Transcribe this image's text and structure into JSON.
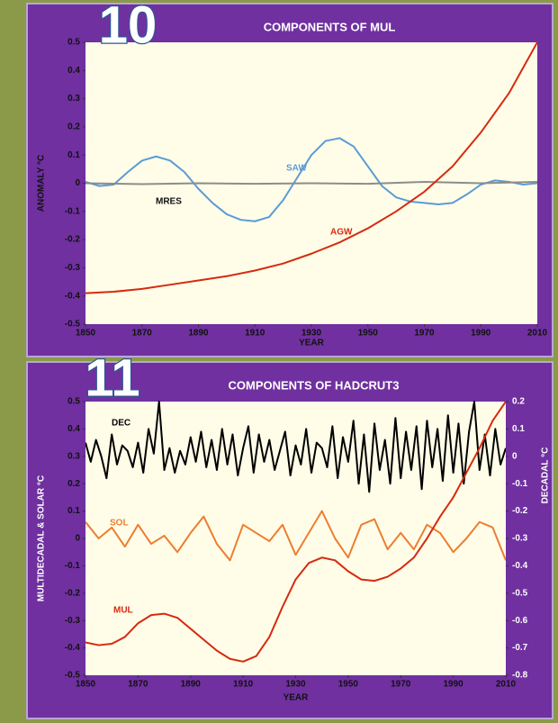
{
  "chart_data": [
    {
      "type": "line",
      "panel_label": "10",
      "title": "COMPONENTS OF MUL",
      "x_label": "YEAR",
      "y_label": "ANOMALY °C",
      "xlim": [
        1850,
        2010
      ],
      "xticks": [
        1850,
        1870,
        1890,
        1910,
        1930,
        1950,
        1970,
        1990,
        2010
      ],
      "ylim": [
        -0.5,
        0.5
      ],
      "yticks": [
        0.5,
        0.4,
        0.3,
        0.2,
        0.1,
        0,
        -0.1,
        -0.2,
        -0.3,
        -0.4,
        -0.5
      ],
      "annotations": [
        "SAW",
        "MRES",
        "AGW"
      ],
      "series": [
        {
          "name": "SAW",
          "color": "#5b9bd5",
          "x": [
            1850,
            1855,
            1860,
            1865,
            1870,
            1875,
            1880,
            1885,
            1890,
            1895,
            1900,
            1905,
            1910,
            1915,
            1920,
            1925,
            1930,
            1935,
            1940,
            1945,
            1950,
            1955,
            1960,
            1965,
            1970,
            1975,
            1980,
            1985,
            1990,
            1995,
            2000,
            2005,
            2010
          ],
          "values": [
            0.005,
            -0.01,
            -0.005,
            0.04,
            0.08,
            0.095,
            0.08,
            0.04,
            -0.02,
            -0.07,
            -0.11,
            -0.13,
            -0.135,
            -0.12,
            -0.06,
            0.02,
            0.1,
            0.15,
            0.16,
            0.13,
            0.06,
            -0.01,
            -0.05,
            -0.065,
            -0.07,
            -0.075,
            -0.07,
            -0.04,
            -0.005,
            0.01,
            0.005,
            -0.005,
            0
          ]
        },
        {
          "name": "MRES",
          "color": "#8c8c8c",
          "x": [
            1850,
            1870,
            1890,
            1910,
            1930,
            1950,
            1970,
            1990,
            2010
          ],
          "values": [
            0,
            -0.003,
            0,
            -0.002,
            0,
            -0.002,
            0.005,
            0,
            0.005
          ]
        },
        {
          "name": "AGW",
          "color": "#d62a10",
          "x": [
            1850,
            1860,
            1870,
            1880,
            1890,
            1900,
            1910,
            1920,
            1930,
            1940,
            1950,
            1960,
            1970,
            1980,
            1990,
            2000,
            2010
          ],
          "values": [
            -0.39,
            -0.385,
            -0.375,
            -0.36,
            -0.345,
            -0.33,
            -0.31,
            -0.285,
            -0.25,
            -0.21,
            -0.16,
            -0.1,
            -0.03,
            0.06,
            0.18,
            0.32,
            0.5
          ]
        }
      ]
    },
    {
      "type": "line",
      "panel_label": "11",
      "title": "COMPONENTS OF HADCRUT3",
      "x_label": "YEAR",
      "y_label": "MULTIDECADAL & SOLAR °C",
      "y2_label": "DECADAL °C",
      "xlim": [
        1850,
        2010
      ],
      "xticks": [
        1850,
        1870,
        1890,
        1910,
        1930,
        1950,
        1970,
        1990,
        2010
      ],
      "ylim": [
        -0.5,
        0.5
      ],
      "yticks": [
        0.5,
        0.4,
        0.3,
        0.2,
        0.1,
        0,
        -0.1,
        -0.2,
        -0.3,
        -0.4,
        -0.5
      ],
      "y2lim": [
        -0.8,
        0.2
      ],
      "y2ticks": [
        0.2,
        0.1,
        0,
        -0.1,
        -0.2,
        -0.3,
        -0.4,
        -0.5,
        -0.6,
        -0.7,
        -0.8
      ],
      "annotations": [
        "DEC",
        "SOL",
        "MUL"
      ],
      "series": [
        {
          "name": "DEC",
          "color": "#000000",
          "axis": "y2",
          "x": [
            1850,
            1852,
            1854,
            1856,
            1858,
            1860,
            1862,
            1864,
            1866,
            1868,
            1870,
            1872,
            1874,
            1876,
            1878,
            1880,
            1882,
            1884,
            1886,
            1888,
            1890,
            1892,
            1894,
            1896,
            1898,
            1900,
            1902,
            1904,
            1906,
            1908,
            1910,
            1912,
            1914,
            1916,
            1918,
            1920,
            1922,
            1924,
            1926,
            1928,
            1930,
            1932,
            1934,
            1936,
            1938,
            1940,
            1942,
            1944,
            1946,
            1948,
            1950,
            1952,
            1954,
            1956,
            1958,
            1960,
            1962,
            1964,
            1966,
            1968,
            1970,
            1972,
            1974,
            1976,
            1978,
            1980,
            1982,
            1984,
            1986,
            1988,
            1990,
            1992,
            1994,
            1996,
            1998,
            2000,
            2002,
            2004,
            2006,
            2008,
            2010
          ],
          "values": [
            0.05,
            -0.02,
            0.06,
            0,
            -0.08,
            0.08,
            -0.03,
            0.04,
            0.02,
            -0.04,
            0.05,
            -0.06,
            0.1,
            0.01,
            0.2,
            -0.05,
            0.03,
            -0.06,
            0.02,
            -0.03,
            0.07,
            -0.02,
            0.09,
            -0.04,
            0.06,
            -0.05,
            0.1,
            -0.03,
            0.08,
            -0.07,
            0.03,
            0.11,
            -0.06,
            0.08,
            -0.02,
            0.06,
            -0.05,
            0.02,
            0.09,
            -0.07,
            0.04,
            -0.03,
            0.1,
            -0.06,
            0.05,
            0.03,
            -0.04,
            0.11,
            -0.08,
            0.07,
            -0.02,
            0.13,
            -0.1,
            0.08,
            -0.13,
            0.12,
            -0.05,
            0.06,
            -0.1,
            0.14,
            -0.08,
            0.09,
            -0.05,
            0.11,
            -0.12,
            0.13,
            -0.04,
            0.1,
            -0.09,
            0.15,
            -0.06,
            0.12,
            -0.1,
            0.09,
            0.2,
            -0.05,
            0.08,
            -0.07,
            0.1,
            -0.03,
            0.03
          ]
        },
        {
          "name": "SOL",
          "color": "#ed7d31",
          "x": [
            1850,
            1855,
            1860,
            1865,
            1870,
            1875,
            1880,
            1885,
            1890,
            1895,
            1900,
            1905,
            1910,
            1915,
            1920,
            1925,
            1930,
            1935,
            1940,
            1945,
            1950,
            1955,
            1960,
            1965,
            1970,
            1975,
            1980,
            1985,
            1990,
            1995,
            2000,
            2005,
            2010
          ],
          "values": [
            0.06,
            0,
            0.04,
            -0.03,
            0.05,
            -0.02,
            0.01,
            -0.05,
            0.02,
            0.08,
            -0.02,
            -0.08,
            0.05,
            0.02,
            -0.01,
            0.05,
            -0.06,
            0.02,
            0.1,
            0,
            -0.07,
            0.05,
            0.07,
            -0.04,
            0.02,
            -0.04,
            0.05,
            0.02,
            -0.05,
            0,
            0.06,
            0.04,
            -0.08
          ]
        },
        {
          "name": "MUL",
          "color": "#d62a10",
          "x": [
            1850,
            1855,
            1860,
            1865,
            1870,
            1875,
            1880,
            1885,
            1890,
            1895,
            1900,
            1905,
            1910,
            1915,
            1920,
            1925,
            1930,
            1935,
            1940,
            1945,
            1950,
            1955,
            1960,
            1965,
            1970,
            1975,
            1980,
            1985,
            1990,
            1995,
            2000,
            2005,
            2010
          ],
          "values": [
            -0.38,
            -0.39,
            -0.385,
            -0.36,
            -0.31,
            -0.28,
            -0.275,
            -0.29,
            -0.33,
            -0.37,
            -0.41,
            -0.44,
            -0.45,
            -0.43,
            -0.36,
            -0.25,
            -0.15,
            -0.09,
            -0.07,
            -0.08,
            -0.12,
            -0.15,
            -0.155,
            -0.14,
            -0.11,
            -0.07,
            0,
            0.08,
            0.15,
            0.24,
            0.33,
            0.43,
            0.5
          ]
        }
      ]
    }
  ]
}
